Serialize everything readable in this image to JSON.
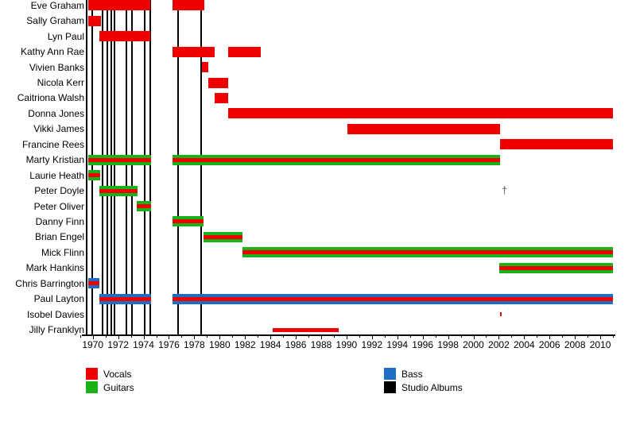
{
  "chart_data": {
    "type": "timeline",
    "subtype": "gantt-band-membership",
    "title": "",
    "x_axis": {
      "min_year": 1969.4,
      "max_year": 2011.3,
      "minor_tick_every": 1,
      "major_tick_every": 2,
      "tick_labels": [
        "1970",
        "1972",
        "1974",
        "1976",
        "1978",
        "1980",
        "1982",
        "1984",
        "1986",
        "1988",
        "1990",
        "1992",
        "1994",
        "1996",
        "1998",
        "2000",
        "2002",
        "2004",
        "2006",
        "2008",
        "2010"
      ]
    },
    "colors": {
      "vocals": "#EE0000",
      "guitars": "#17B217",
      "bass": "#1D6FC4",
      "albums": "#000000"
    },
    "legend": [
      {
        "label": "Vocals",
        "color": "#EE0000"
      },
      {
        "label": "Guitars",
        "color": "#17B217"
      },
      {
        "label": "Bass",
        "color": "#1D6FC4"
      },
      {
        "label": "Studio Albums",
        "color": "#000000"
      }
    ],
    "members": [
      {
        "name": "Eve Graham",
        "roles": [
          "vocals"
        ],
        "periods": [
          [
            1969.64,
            1974.56
          ],
          [
            1976.28,
            1978.79
          ]
        ]
      },
      {
        "name": "Sally Graham",
        "roles": [
          "vocals"
        ],
        "periods": [
          [
            1969.64,
            1970.63
          ]
        ]
      },
      {
        "name": "Lyn Paul",
        "roles": [
          "vocals"
        ],
        "periods": [
          [
            1970.52,
            1974.56
          ]
        ]
      },
      {
        "name": "Kathy Ann Rae",
        "roles": [
          "vocals"
        ],
        "periods": [
          [
            1976.28,
            1979.62
          ],
          [
            1980.65,
            1983.26
          ]
        ]
      },
      {
        "name": "Vivien Banks",
        "roles": [
          "vocals"
        ],
        "periods": [
          [
            1978.62,
            1979.1
          ]
        ]
      },
      {
        "name": "Nicola Kerr",
        "roles": [
          "vocals"
        ],
        "periods": [
          [
            1979.1,
            1980.65
          ]
        ]
      },
      {
        "name": "Caitriona Walsh",
        "roles": [
          "vocals"
        ],
        "periods": [
          [
            1979.6,
            1980.65
          ]
        ]
      },
      {
        "name": "Donna Jones",
        "roles": [
          "vocals"
        ],
        "periods": [
          [
            1980.65,
            2011.0
          ]
        ]
      },
      {
        "name": "Vikki James",
        "roles": [
          "vocals"
        ],
        "periods": [
          [
            1990.08,
            2002.1
          ]
        ]
      },
      {
        "name": "Francine Rees",
        "roles": [
          "vocals"
        ],
        "periods": [
          [
            2002.1,
            2011.0
          ]
        ]
      },
      {
        "name": "Marty Kristian",
        "roles": [
          "vocals",
          "guitars"
        ],
        "periods": [
          [
            1969.64,
            1974.6
          ],
          [
            1976.28,
            2002.1
          ]
        ]
      },
      {
        "name": "Laurie Heath",
        "roles": [
          "vocals",
          "guitars"
        ],
        "periods": [
          [
            1969.64,
            1970.58
          ]
        ]
      },
      {
        "name": "Peter Doyle",
        "roles": [
          "vocals",
          "guitars"
        ],
        "periods": [
          [
            1970.52,
            1973.55
          ]
        ],
        "note": "†",
        "note_year": 2002.45
      },
      {
        "name": "Peter Oliver",
        "roles": [
          "vocals",
          "guitars"
        ],
        "periods": [
          [
            1973.45,
            1974.6
          ]
        ]
      },
      {
        "name": "Danny Finn",
        "roles": [
          "vocals",
          "guitars"
        ],
        "periods": [
          [
            1976.27,
            1978.73
          ]
        ]
      },
      {
        "name": "Brian Engel",
        "roles": [
          "vocals",
          "guitars"
        ],
        "periods": [
          [
            1978.73,
            1981.8
          ]
        ]
      },
      {
        "name": "Mick Flinn",
        "roles": [
          "vocals",
          "guitars"
        ],
        "periods": [
          [
            1981.8,
            2011.0
          ]
        ]
      },
      {
        "name": "Mark Hankins",
        "roles": [
          "vocals",
          "guitars"
        ],
        "periods": [
          [
            2002.06,
            2011.0
          ]
        ]
      },
      {
        "name": "Chris Barrington",
        "roles": [
          "vocals",
          "bass"
        ],
        "periods": [
          [
            1969.64,
            1970.5
          ]
        ]
      },
      {
        "name": "Paul Layton",
        "roles": [
          "vocals",
          "bass"
        ],
        "periods": [
          [
            1970.52,
            1974.6
          ],
          [
            1976.26,
            2011.0
          ]
        ]
      },
      {
        "name": "Isobel Davies",
        "roles": [
          "vocals"
        ],
        "periods": [
          [
            2002.1,
            2002.2
          ]
        ],
        "thin": true
      },
      {
        "name": "Jilly Franklyn",
        "roles": [
          "vocals"
        ],
        "periods": [
          [
            1984.2,
            1989.38
          ]
        ],
        "thin": true
      }
    ],
    "album_years": [
      1969.49,
      1969.96,
      1970.8,
      1971.15,
      1971.43,
      1971.71,
      1972.68,
      1973.06,
      1974.12,
      1974.56,
      1976.72,
      1978.57
    ],
    "annotations": [
      {
        "symbol": "†",
        "member": "Peter Doyle",
        "year": 2002.45
      }
    ]
  }
}
